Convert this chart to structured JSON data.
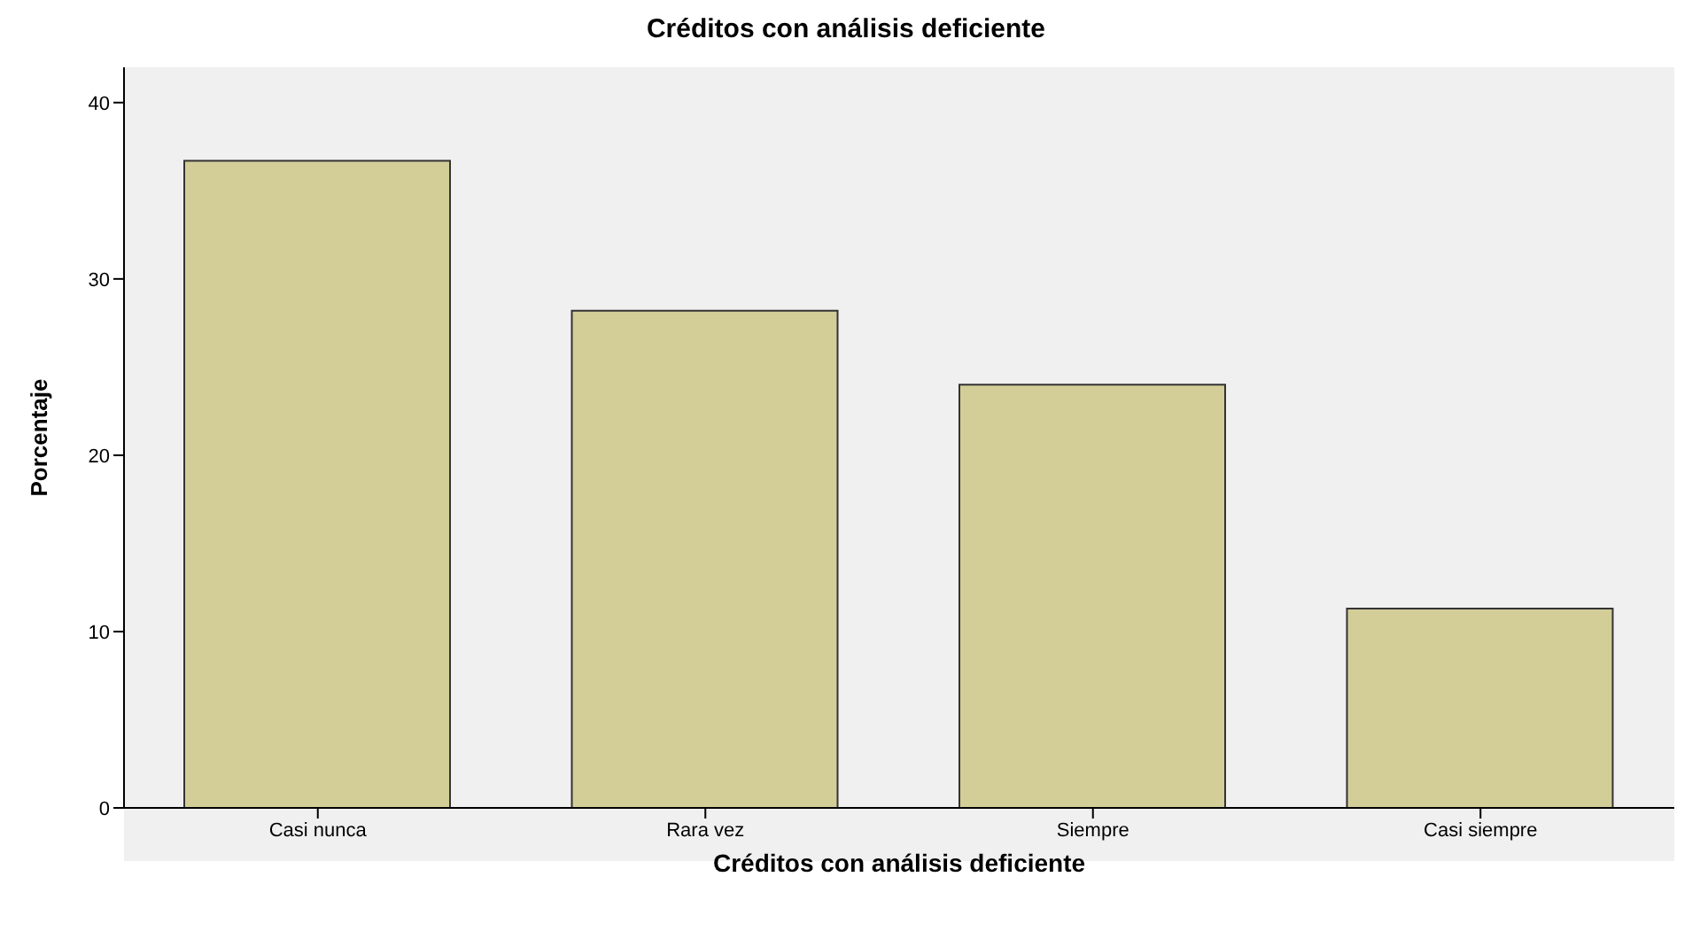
{
  "chart_data": {
    "type": "bar",
    "title": "Créditos con análisis deficiente",
    "xlabel": "Créditos con análisis deficiente",
    "ylabel": "Porcentaje",
    "categories": [
      "Casi nunca",
      "Rara vez",
      "Siempre",
      "Casi siempre"
    ],
    "values": [
      36.7,
      28.2,
      24.0,
      11.3
    ],
    "color": "#d3cd98",
    "ylim": [
      0,
      42
    ],
    "yticks": [
      0,
      10,
      20,
      30,
      40
    ],
    "grid": false,
    "legend": false
  }
}
